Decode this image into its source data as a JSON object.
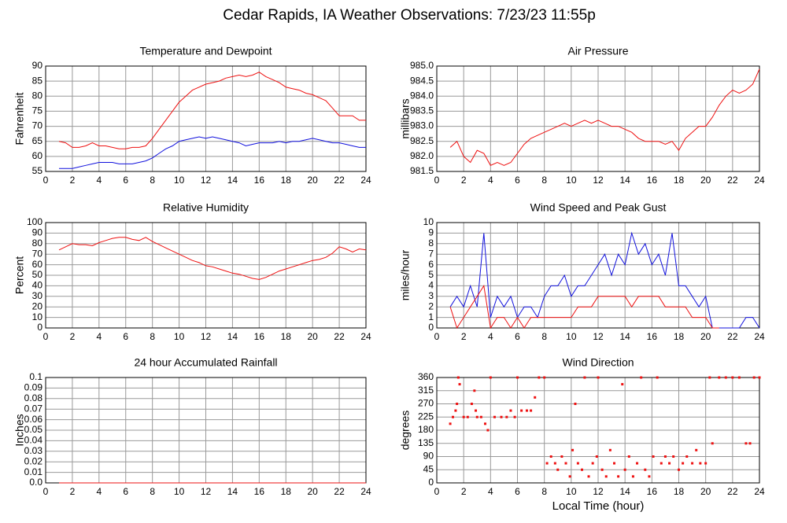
{
  "title": "Cedar Rapids, IA Weather Observations: 7/23/23 11:55p",
  "chart_data": [
    {
      "type": "line",
      "title": "Temperature and Dewpoint",
      "ylabel": "Fahrenheit",
      "xlim": [
        0,
        24
      ],
      "xticks": [
        2,
        4,
        6,
        8,
        10,
        12,
        14,
        16,
        18,
        20,
        22,
        24
      ],
      "ylim": [
        55,
        90
      ],
      "yticks": [
        55,
        60,
        65,
        70,
        75,
        80,
        85,
        90
      ],
      "grid": true,
      "x": [
        1,
        1.5,
        2,
        2.5,
        3,
        3.5,
        4,
        4.5,
        5,
        5.5,
        6,
        6.5,
        7,
        7.5,
        8,
        8.5,
        9,
        9.5,
        10,
        10.5,
        11,
        11.5,
        12,
        12.5,
        13,
        13.5,
        14,
        14.5,
        15,
        15.5,
        16,
        16.5,
        17,
        17.5,
        18,
        18.5,
        19,
        19.5,
        20,
        20.5,
        21,
        21.5,
        22,
        22.5,
        23,
        23.5,
        24
      ],
      "series": [
        {
          "color": "#ee1111",
          "values": [
            65,
            64.5,
            63,
            63,
            63.5,
            64.5,
            63.5,
            63.5,
            63,
            62.5,
            62.5,
            63,
            63,
            63.5,
            66,
            69,
            72,
            75,
            78,
            80,
            82,
            83,
            84,
            84.5,
            85,
            86,
            86.5,
            87,
            86.5,
            87,
            88,
            86.5,
            85.5,
            84.5,
            83,
            82.5,
            82,
            81,
            80.5,
            79.5,
            78.5,
            76,
            73.5,
            73.5,
            73.5,
            72,
            72
          ]
        },
        {
          "color": "#1111dd",
          "values": [
            56,
            56,
            56,
            56.5,
            57,
            57.5,
            58,
            58,
            58,
            57.5,
            57.5,
            57.5,
            58,
            58.5,
            59.5,
            61,
            62.5,
            63.5,
            65,
            65.5,
            66,
            66.5,
            66,
            66.5,
            66,
            65.5,
            65,
            64.5,
            63.5,
            64,
            64.5,
            64.5,
            64.5,
            65,
            64.5,
            65,
            65,
            65.5,
            66,
            65.5,
            65,
            64.5,
            64.5,
            64,
            63.5,
            63,
            63
          ]
        }
      ]
    },
    {
      "type": "line",
      "title": "Air Pressure",
      "ylabel": "millibars",
      "xlim": [
        0,
        24
      ],
      "xticks": [
        2,
        4,
        6,
        8,
        10,
        12,
        14,
        16,
        18,
        20,
        22,
        24
      ],
      "ylim": [
        981.5,
        985
      ],
      "yticks": [
        {
          "value": 981.5,
          "label": "981.5"
        },
        {
          "value": 982,
          "label": "982.0"
        },
        {
          "value": 982.5,
          "label": "982.5"
        },
        {
          "value": 983,
          "label": "983.0"
        },
        {
          "value": 983.5,
          "label": "983.5"
        },
        {
          "value": 984,
          "label": "984.0"
        },
        {
          "value": 984.5,
          "label": "984.5"
        },
        {
          "value": 985,
          "label": "985.0"
        }
      ],
      "grid": true,
      "x": [
        1,
        1.5,
        2,
        2.5,
        3,
        3.5,
        4,
        4.5,
        5,
        5.5,
        6,
        6.5,
        7,
        7.5,
        8,
        8.5,
        9,
        9.5,
        10,
        10.5,
        11,
        11.5,
        12,
        12.5,
        13,
        13.5,
        14,
        14.5,
        15,
        15.5,
        16,
        16.5,
        17,
        17.5,
        18,
        18.5,
        19,
        19.5,
        20,
        20.5,
        21,
        21.5,
        22,
        22.5,
        23,
        23.5,
        24
      ],
      "series": [
        {
          "color": "#ee1111",
          "values": [
            982.3,
            982.5,
            982.0,
            981.8,
            982.2,
            982.1,
            981.7,
            981.8,
            981.7,
            981.8,
            982.1,
            982.4,
            982.6,
            982.7,
            982.8,
            982.9,
            983.0,
            983.1,
            983.0,
            983.1,
            983.2,
            983.1,
            983.2,
            983.1,
            983.0,
            983.0,
            982.9,
            982.8,
            982.6,
            982.5,
            982.5,
            982.5,
            982.4,
            982.5,
            982.2,
            982.6,
            982.8,
            983.0,
            983.0,
            983.3,
            983.7,
            984.0,
            984.2,
            984.1,
            984.2,
            984.4,
            984.9
          ]
        }
      ]
    },
    {
      "type": "line",
      "title": "Relative Humidity",
      "ylabel": "Percent",
      "xlim": [
        0,
        24
      ],
      "xticks": [
        2,
        4,
        6,
        8,
        10,
        12,
        14,
        16,
        18,
        20,
        22,
        24
      ],
      "ylim": [
        0,
        100
      ],
      "yticks": [
        0,
        10,
        20,
        30,
        40,
        50,
        60,
        70,
        80,
        90,
        100
      ],
      "grid": true,
      "x": [
        1,
        1.5,
        2,
        2.5,
        3,
        3.5,
        4,
        4.5,
        5,
        5.5,
        6,
        6.5,
        7,
        7.5,
        8,
        8.5,
        9,
        9.5,
        10,
        10.5,
        11,
        11.5,
        12,
        12.5,
        13,
        13.5,
        14,
        14.5,
        15,
        15.5,
        16,
        16.5,
        17,
        17.5,
        18,
        18.5,
        19,
        19.5,
        20,
        20.5,
        21,
        21.5,
        22,
        22.5,
        23,
        23.5,
        24
      ],
      "series": [
        {
          "color": "#ee1111",
          "values": [
            74,
            77,
            80,
            79,
            79,
            78,
            81,
            83,
            85,
            86,
            86,
            84,
            83,
            86,
            82,
            79,
            76,
            73,
            70,
            67,
            64,
            62,
            59,
            58,
            56,
            54,
            52,
            51,
            49,
            47,
            46,
            48,
            51,
            54,
            56,
            58,
            60,
            62,
            64,
            65,
            67,
            71,
            77,
            75,
            72,
            75,
            74
          ]
        }
      ]
    },
    {
      "type": "line",
      "title": "Wind Speed and Peak Gust",
      "ylabel": "miles/hour",
      "xlim": [
        0,
        24
      ],
      "xticks": [
        2,
        4,
        6,
        8,
        10,
        12,
        14,
        16,
        18,
        20,
        22,
        24
      ],
      "ylim": [
        0,
        10
      ],
      "yticks": [
        0,
        1,
        2,
        3,
        4,
        5,
        6,
        7,
        8,
        9,
        10
      ],
      "grid": true,
      "x": [
        1,
        1.5,
        2,
        2.5,
        3,
        3.5,
        4,
        4.5,
        5,
        5.5,
        6,
        6.5,
        7,
        7.5,
        8,
        8.5,
        9,
        9.5,
        10,
        10.5,
        11,
        11.5,
        12,
        12.5,
        13,
        13.5,
        14,
        14.5,
        15,
        15.5,
        16,
        16.5,
        17,
        17.5,
        18,
        18.5,
        19,
        19.5,
        20,
        20.5,
        21,
        21.5,
        22,
        22.5,
        23,
        23.5,
        24
      ],
      "series": [
        {
          "color": "#1111dd",
          "values": [
            2,
            3,
            2,
            4,
            2,
            9,
            1,
            3,
            2,
            3,
            1,
            2,
            2,
            1,
            3,
            4,
            4,
            5,
            3,
            4,
            4,
            5,
            6,
            7,
            5,
            7,
            6,
            9,
            7,
            8,
            6,
            7,
            5,
            9,
            4,
            4,
            3,
            2,
            3,
            0,
            0,
            0,
            0,
            0,
            1,
            1,
            0
          ]
        },
        {
          "color": "#ee1111",
          "values": [
            2,
            0,
            1,
            2,
            3,
            4,
            0,
            1,
            1,
            0,
            1,
            0,
            1,
            1,
            1,
            1,
            1,
            1,
            1,
            2,
            2,
            2,
            3,
            3,
            3,
            3,
            3,
            2,
            3,
            3,
            3,
            3,
            2,
            2,
            2,
            2,
            1,
            1,
            1,
            0,
            0,
            null,
            null,
            null,
            null,
            null,
            null
          ]
        }
      ]
    },
    {
      "type": "line",
      "title": "24 hour Accumulated Rainfall",
      "ylabel": "Inches",
      "xlim": [
        0,
        24
      ],
      "xticks": [
        2,
        4,
        6,
        8,
        10,
        12,
        14,
        16,
        18,
        20,
        22,
        24
      ],
      "ylim": [
        0,
        0.1
      ],
      "yticks": [
        {
          "value": 0,
          "label": "0.0"
        },
        0.01,
        0.02,
        0.03,
        0.04,
        0.05,
        0.06,
        0.07,
        0.08,
        0.09,
        0.1
      ],
      "grid": true,
      "x": [
        1,
        24
      ],
      "series": [
        {
          "color": "#ee1111",
          "values": [
            0,
            0
          ]
        }
      ]
    },
    {
      "type": "scatter",
      "title": "Wind Direction",
      "ylabel": "degrees",
      "xlabel": "Local Time (hour)",
      "xlim": [
        0,
        24
      ],
      "xticks": [
        2,
        4,
        6,
        8,
        10,
        12,
        14,
        16,
        18,
        20,
        22,
        24
      ],
      "ylim": [
        0,
        360
      ],
      "yticks": [
        0,
        45,
        90,
        135,
        180,
        225,
        270,
        315,
        360
      ],
      "grid": true,
      "x": [
        1,
        1.2,
        1.4,
        1.5,
        1.6,
        1.7,
        2,
        2.3,
        2.6,
        2.8,
        2.9,
        3,
        3.3,
        3.6,
        3.8,
        4,
        4.3,
        4.8,
        5.2,
        5.5,
        5.8,
        6,
        6.3,
        6.7,
        7,
        7.3,
        7.6,
        8,
        8.2,
        8.5,
        8.8,
        9,
        9.3,
        9.6,
        9.9,
        10.1,
        10.3,
        10.5,
        10.8,
        11,
        11.3,
        11.6,
        11.9,
        12,
        12.3,
        12.6,
        12.9,
        13.2,
        13.5,
        13.8,
        14,
        14.3,
        14.6,
        14.9,
        15.2,
        15.5,
        15.8,
        16.1,
        16.4,
        16.7,
        17,
        17.3,
        17.6,
        18,
        18.3,
        18.6,
        19,
        19.3,
        19.6,
        20,
        20.3,
        20.5,
        21,
        21.5,
        22,
        22.5,
        23,
        23.3,
        23.6,
        24
      ],
      "series": [
        {
          "color": "#ee1111",
          "values": [
            202,
            225,
            247,
            270,
            360,
            337,
            225,
            225,
            270,
            315,
            247,
            225,
            225,
            202,
            180,
            360,
            225,
            225,
            225,
            247,
            225,
            360,
            247,
            247,
            247,
            292,
            360,
            360,
            67,
            90,
            67,
            45,
            90,
            67,
            22,
            112,
            270,
            67,
            45,
            360,
            22,
            67,
            90,
            360,
            45,
            22,
            112,
            67,
            22,
            337,
            45,
            90,
            22,
            67,
            360,
            45,
            22,
            90,
            360,
            67,
            90,
            67,
            90,
            45,
            67,
            90,
            67,
            112,
            67,
            67,
            360,
            135,
            360,
            360,
            360,
            360,
            135,
            135,
            360,
            360
          ]
        }
      ]
    }
  ]
}
